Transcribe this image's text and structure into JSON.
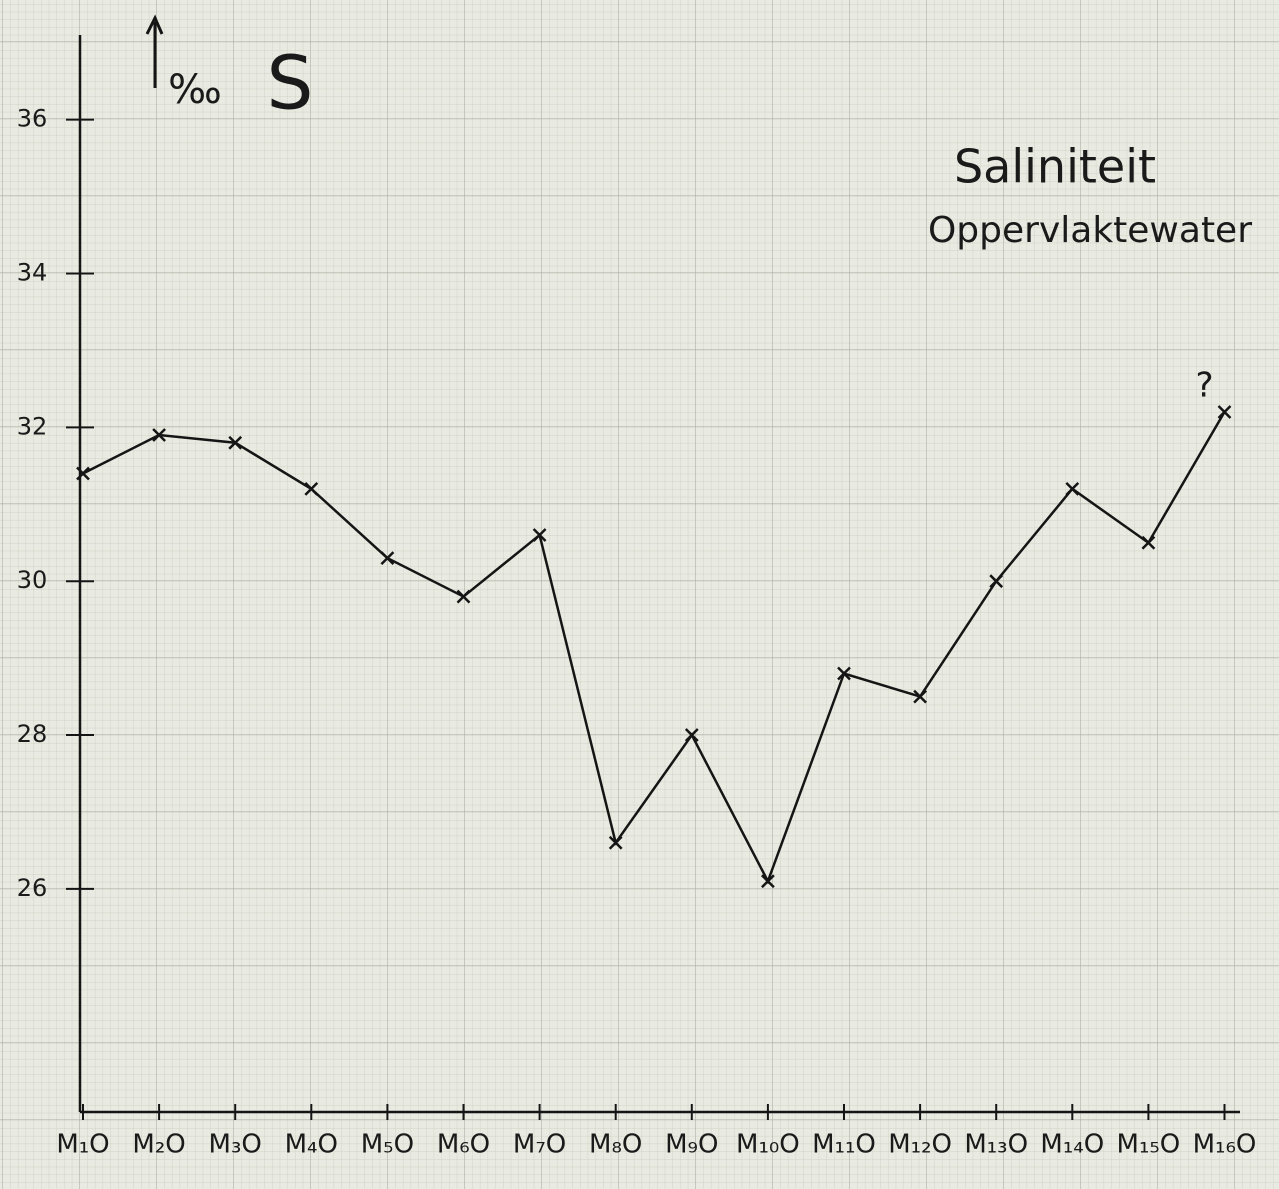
{
  "chart_data": {
    "type": "line",
    "title": "Saliniteit",
    "subtitle": "Oppervlaktewater",
    "y_label": "‰",
    "y_symbol": "S",
    "annotation": "?",
    "categories": [
      "M₁O",
      "M₂O",
      "M₃O",
      "M₄O",
      "M₅O",
      "M₆O",
      "M₇O",
      "M₈O",
      "M₉O",
      "M₁₀O",
      "M₁₁O",
      "M₁₂O",
      "M₁₃O",
      "M₁₄O",
      "M₁₅O",
      "M₁₆O"
    ],
    "values": [
      31.4,
      31.9,
      31.8,
      31.2,
      30.3,
      29.8,
      30.6,
      26.6,
      28.0,
      26.1,
      28.8,
      28.5,
      30.0,
      31.2,
      30.5,
      32.2
    ],
    "color": "#151515",
    "ylim": [
      23.1,
      37.1
    ],
    "yticks": [
      26,
      28,
      30,
      32,
      34,
      36
    ]
  }
}
